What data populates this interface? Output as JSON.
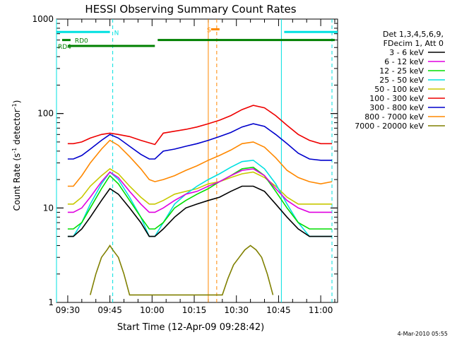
{
  "chart_data": {
    "type": "line",
    "title": "HESSI Observing Summary Count Rates",
    "xlabel": "Start Time (12-Apr-09 09:28:42)",
    "ylabel": "Count Rate (s^-1 detector^-1)",
    "y_scale": "log",
    "ylim": [
      1,
      1000
    ],
    "xlim": [
      "09:26",
      "11:06"
    ],
    "y_ticks": [
      1,
      10,
      100,
      1000
    ],
    "y_tick_labels": [
      "1",
      "10",
      "100",
      "1000"
    ],
    "x_ticks": [
      "09:30",
      "09:45",
      "10:00",
      "10:15",
      "10:30",
      "10:45",
      "11:00"
    ],
    "legend_header": [
      "Det 1,3,4,5,6,9,",
      "FDecim 1, Att 0"
    ],
    "legend_placement": "right",
    "series": [
      {
        "name": "3 - 6 keV",
        "color": "#000000",
        "x": [
          "09:30",
          "09:32",
          "09:35",
          "09:38",
          "09:42",
          "09:45",
          "09:48",
          "09:52",
          "09:56",
          "09:59",
          "10:01",
          "10:04",
          "10:08",
          "10:12",
          "10:16",
          "10:20",
          "10:24",
          "10:28",
          "10:32",
          "10:36",
          "10:40",
          "10:44",
          "10:48",
          "10:52",
          "10:56",
          "11:00",
          "11:04"
        ],
        "y": [
          5,
          5,
          6,
          8,
          12,
          16,
          14,
          10,
          7,
          5,
          5,
          6,
          8,
          10,
          11,
          12,
          13,
          15,
          17,
          17,
          15,
          11,
          8,
          6,
          5,
          5,
          5
        ]
      },
      {
        "name": "6 - 12 keV",
        "color": "#e000e0",
        "x": [
          "09:30",
          "09:32",
          "09:35",
          "09:38",
          "09:42",
          "09:45",
          "09:48",
          "09:52",
          "09:56",
          "09:59",
          "10:01",
          "10:04",
          "10:08",
          "10:12",
          "10:16",
          "10:20",
          "10:24",
          "10:28",
          "10:32",
          "10:36",
          "10:40",
          "10:44",
          "10:48",
          "10:52",
          "10:56",
          "11:00",
          "11:04"
        ],
        "y": [
          9,
          9,
          10,
          13,
          19,
          24,
          21,
          15,
          11,
          9,
          9,
          10,
          12,
          14,
          15,
          17,
          19,
          22,
          25,
          26,
          22,
          16,
          12,
          10,
          9,
          9,
          9
        ]
      },
      {
        "name": "12 - 25 keV",
        "color": "#00dd00",
        "x": [
          "09:30",
          "09:32",
          "09:35",
          "09:38",
          "09:42",
          "09:45",
          "09:48",
          "09:52",
          "09:56",
          "09:59",
          "10:01",
          "10:04",
          "10:08",
          "10:12",
          "10:16",
          "10:20",
          "10:24",
          "10:28",
          "10:32",
          "10:36",
          "10:40",
          "10:44",
          "10:48",
          "10:52",
          "10:56",
          "11:00",
          "11:04"
        ],
        "y": [
          6,
          6,
          7,
          10,
          16,
          22,
          18,
          12,
          8,
          6,
          6,
          7,
          10,
          12,
          14,
          16,
          19,
          22,
          26,
          27,
          22,
          15,
          10,
          7,
          6,
          6,
          6
        ]
      },
      {
        "name": "25 - 50 keV",
        "color": "#00e0e0",
        "x": [
          "09:30",
          "09:32",
          "09:35",
          "09:38",
          "09:42",
          "09:45",
          "09:48",
          "09:52",
          "09:56",
          "09:59",
          "10:01",
          "10:04",
          "10:08",
          "10:12",
          "10:16",
          "10:20",
          "10:24",
          "10:28",
          "10:32",
          "10:36",
          "10:40",
          "10:44",
          "10:48",
          "10:52",
          "10:56",
          "11:00",
          "11:04"
        ],
        "y": [
          5,
          5,
          7,
          11,
          18,
          24,
          20,
          13,
          8,
          5,
          5,
          7,
          11,
          14,
          17,
          20,
          23,
          27,
          31,
          32,
          26,
          18,
          11,
          7,
          5,
          5,
          5
        ]
      },
      {
        "name": "50 - 100 keV",
        "color": "#c8c800",
        "x": [
          "09:30",
          "09:32",
          "09:35",
          "09:38",
          "09:42",
          "09:45",
          "09:48",
          "09:52",
          "09:56",
          "09:59",
          "10:01",
          "10:04",
          "10:08",
          "10:12",
          "10:16",
          "10:20",
          "10:24",
          "10:28",
          "10:32",
          "10:36",
          "10:40",
          "10:44",
          "10:48",
          "10:52",
          "10:56",
          "11:00",
          "11:04"
        ],
        "y": [
          11,
          11,
          13,
          17,
          22,
          26,
          23,
          17,
          13,
          11,
          11,
          12,
          14,
          15,
          16,
          18,
          19,
          21,
          23,
          24,
          21,
          17,
          13,
          11,
          11,
          11,
          11
        ]
      },
      {
        "name": "100 - 300 keV",
        "color": "#ee0000",
        "x": [
          "09:30",
          "09:32",
          "09:35",
          "09:38",
          "09:42",
          "09:45",
          "09:48",
          "09:52",
          "09:56",
          "09:59",
          "10:01",
          "10:04",
          "10:08",
          "10:12",
          "10:16",
          "10:20",
          "10:24",
          "10:28",
          "10:32",
          "10:36",
          "10:40",
          "10:44",
          "10:48",
          "10:52",
          "10:56",
          "11:00",
          "11:04"
        ],
        "y": [
          48,
          48,
          50,
          55,
          60,
          62,
          60,
          57,
          52,
          49,
          47,
          62,
          65,
          68,
          72,
          78,
          85,
          95,
          110,
          122,
          115,
          95,
          75,
          60,
          52,
          48,
          48
        ]
      },
      {
        "name": "300 - 800 keV",
        "color": "#0000cc",
        "x": [
          "09:30",
          "09:32",
          "09:35",
          "09:38",
          "09:42",
          "09:45",
          "09:48",
          "09:52",
          "09:56",
          "09:59",
          "10:01",
          "10:04",
          "10:08",
          "10:12",
          "10:16",
          "10:20",
          "10:24",
          "10:28",
          "10:32",
          "10:36",
          "10:40",
          "10:44",
          "10:48",
          "10:52",
          "10:56",
          "11:00",
          "11:04"
        ],
        "y": [
          33,
          33,
          36,
          42,
          52,
          60,
          55,
          45,
          37,
          33,
          33,
          40,
          42,
          45,
          48,
          52,
          57,
          63,
          72,
          78,
          73,
          60,
          48,
          38,
          33,
          32,
          32
        ]
      },
      {
        "name": "800 - 7000 keV",
        "color": "#ff8800",
        "x": [
          "09:30",
          "09:32",
          "09:35",
          "09:38",
          "09:42",
          "09:45",
          "09:48",
          "09:52",
          "09:56",
          "09:59",
          "10:01",
          "10:04",
          "10:08",
          "10:12",
          "10:16",
          "10:20",
          "10:24",
          "10:28",
          "10:32",
          "10:36",
          "10:40",
          "10:44",
          "10:48",
          "10:52",
          "10:56",
          "11:00",
          "11:04"
        ],
        "y": [
          17,
          17,
          22,
          30,
          42,
          52,
          46,
          35,
          26,
          20,
          19,
          20,
          22,
          25,
          28,
          32,
          36,
          41,
          48,
          50,
          44,
          34,
          25,
          21,
          19,
          18,
          19
        ]
      },
      {
        "name": "7000 - 20000 keV",
        "color": "#808000",
        "x": [
          "09:38",
          "09:40",
          "09:42",
          "09:44",
          "09:45",
          "09:46",
          "09:48",
          "09:50",
          "09:52",
          "10:25",
          "10:27",
          "10:29",
          "10:31",
          "10:33",
          "10:35",
          "10:37",
          "10:39",
          "10:41",
          "10:43"
        ],
        "y": [
          1.2,
          2.0,
          3.0,
          3.6,
          4.0,
          3.6,
          3.0,
          2.0,
          1.2,
          1.2,
          1.8,
          2.5,
          3.0,
          3.6,
          4.0,
          3.6,
          3.0,
          2.0,
          1.2
        ]
      }
    ],
    "flags": [
      {
        "name": "N",
        "color": "#00e0e0",
        "level": 730,
        "label_time": "09:46",
        "segments": [
          [
            "09:26",
            "09:45"
          ],
          [
            "10:47",
            "11:06"
          ]
        ]
      },
      {
        "name": "RD0",
        "color": "#008000",
        "level": 600,
        "label_time": "09:32",
        "segments": [
          [
            "09:28",
            "09:31"
          ],
          [
            "10:02",
            "11:05"
          ]
        ]
      },
      {
        "name": "RD4",
        "color": "#008000",
        "level": 520,
        "label_time": "09:26",
        "segments": [
          [
            "09:30",
            "10:01"
          ]
        ]
      },
      {
        "name": "S",
        "color": "#ff8800",
        "level": 780,
        "label_time": "10:19",
        "segments": [
          [
            "10:21",
            "10:24"
          ]
        ]
      }
    ],
    "vlines": [
      {
        "time": "09:26",
        "color": "#00e0e0",
        "dashed": false
      },
      {
        "time": "09:46",
        "color": "#00e0e0",
        "dashed": true
      },
      {
        "time": "10:20",
        "color": "#ff8800",
        "dashed": false
      },
      {
        "time": "10:23",
        "color": "#ff8800",
        "dashed": true
      },
      {
        "time": "10:46",
        "color": "#00e0e0",
        "dashed": false
      },
      {
        "time": "11:04",
        "color": "#00e0e0",
        "dashed": true
      }
    ]
  },
  "footer": {
    "date_stamp": "4-Mar-2010 05:55"
  }
}
